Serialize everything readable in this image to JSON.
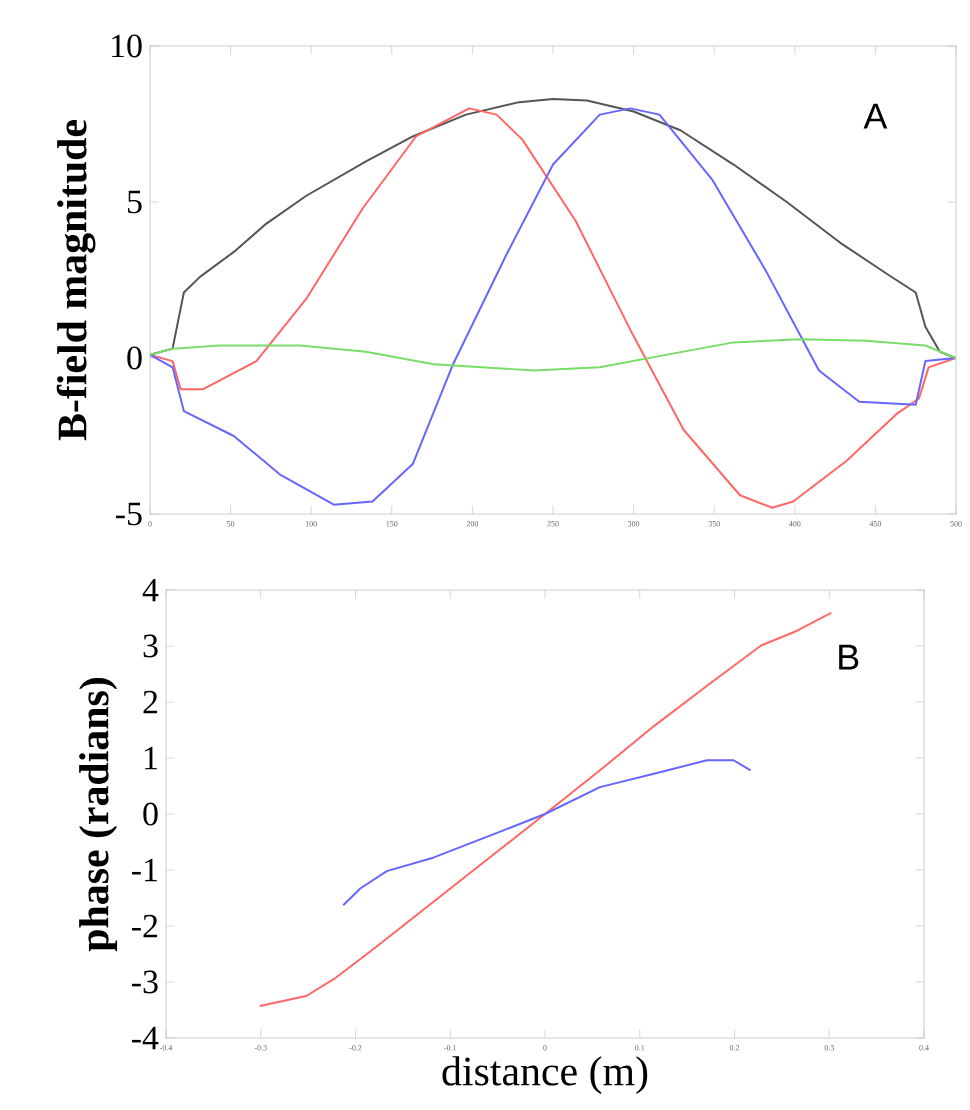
{
  "chart_data": [
    {
      "type": "line",
      "ylabel": "B-field magnitude",
      "annotations": [
        "A"
      ],
      "xlim": [
        0,
        500
      ],
      "ylim": [
        -5,
        10
      ],
      "xticks": [
        0,
        50,
        100,
        150,
        200,
        250,
        300,
        350,
        400,
        450,
        500
      ],
      "yticks": [
        -5,
        0,
        5,
        10
      ],
      "grid": false,
      "series": [
        {
          "color": "#555555",
          "x": [
            0,
            14,
            21,
            31,
            52,
            72,
            97,
            134,
            163,
            196,
            229,
            250,
            271,
            300,
            329,
            362,
            395,
            428,
            457,
            475,
            481,
            490,
            500
          ],
          "values": [
            0.1,
            0.3,
            2.1,
            2.6,
            3.4,
            4.3,
            5.2,
            6.3,
            7.1,
            7.8,
            8.2,
            8.3,
            8.25,
            7.9,
            7.3,
            6.2,
            5.0,
            3.7,
            2.7,
            2.1,
            1.0,
            0.2,
            0
          ]
        },
        {
          "color": "#ff6666",
          "x": [
            0,
            14,
            19,
            33,
            66,
            97,
            132,
            165,
            198,
            215,
            231,
            264,
            298,
            331,
            366,
            386,
            399,
            432,
            463,
            477,
            483,
            500
          ],
          "values": [
            0.1,
            -0.1,
            -1.0,
            -1.0,
            -0.1,
            1.9,
            4.8,
            7.1,
            8.0,
            7.8,
            7.0,
            4.4,
            0.9,
            -2.3,
            -4.4,
            -4.8,
            -4.6,
            -3.3,
            -1.8,
            -1.3,
            -0.3,
            0
          ]
        },
        {
          "color": "#6666ff",
          "x": [
            0,
            14,
            21,
            52,
            81,
            114,
            138,
            163,
            188,
            221,
            250,
            279,
            298,
            316,
            349,
            382,
            415,
            440,
            475,
            481,
            500
          ],
          "values": [
            0.1,
            -0.3,
            -1.7,
            -2.5,
            -3.75,
            -4.7,
            -4.6,
            -3.4,
            -0.2,
            3.3,
            6.2,
            7.8,
            8.0,
            7.8,
            5.7,
            2.8,
            -0.4,
            -1.4,
            -1.5,
            -0.1,
            0
          ]
        },
        {
          "color": "#77dd66",
          "x": [
            0,
            14,
            43,
            93,
            134,
            176,
            238,
            279,
            320,
            362,
            403,
            444,
            481,
            500
          ],
          "values": [
            0.1,
            0.3,
            0.4,
            0.4,
            0.2,
            -0.2,
            -0.4,
            -0.3,
            0.1,
            0.5,
            0.6,
            0.55,
            0.4,
            0
          ]
        }
      ]
    },
    {
      "type": "line",
      "xlabel": "distance (m)",
      "ylabel": "phase (radians)",
      "annotations": [
        "B"
      ],
      "xlim": [
        -0.4,
        0.4
      ],
      "ylim": [
        -4,
        4
      ],
      "xticks": [
        -0.4,
        -0.3,
        -0.2,
        -0.1,
        0,
        0.1,
        0.2,
        0.3,
        0.4
      ],
      "yticks": [
        -4,
        -3,
        -2,
        -1,
        0,
        1,
        2,
        3,
        4
      ],
      "grid": false,
      "series": [
        {
          "color": "#ff6666",
          "x": [
            -0.301,
            -0.252,
            -0.223,
            -0.181,
            -0.118,
            -0.054,
            0,
            0.058,
            0.115,
            0.171,
            0.228,
            0.263,
            0.302
          ],
          "values": [
            -3.43,
            -3.25,
            -2.95,
            -2.41,
            -1.57,
            -0.72,
            0,
            0.78,
            1.57,
            2.29,
            3.01,
            3.25,
            3.59
          ]
        },
        {
          "color": "#6666ff",
          "x": [
            -0.213,
            -0.195,
            -0.167,
            -0.118,
            -0.054,
            0,
            0.058,
            0.115,
            0.171,
            0.199,
            0.217
          ],
          "values": [
            -1.63,
            -1.33,
            -1.02,
            -0.78,
            -0.36,
            0,
            0.48,
            0.72,
            0.96,
            0.96,
            0.78
          ]
        }
      ]
    }
  ]
}
